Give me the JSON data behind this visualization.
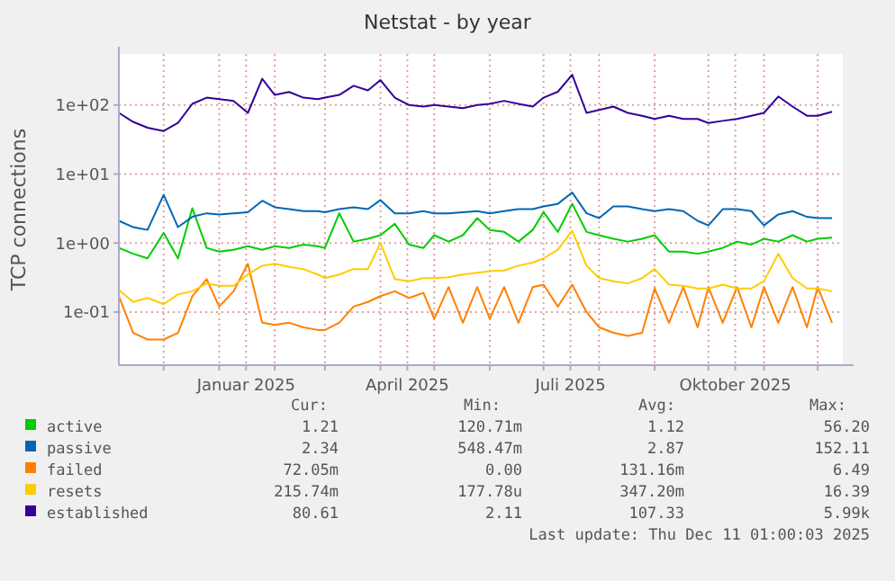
{
  "chart_data": {
    "type": "line",
    "title": "Netstat - by year",
    "ylabel": "TCP connections",
    "log": true,
    "grid": true,
    "legend": "bottom",
    "marker": "none",
    "line_style": "solid",
    "x": [
      "2024-11-06",
      "2024-11-14",
      "2024-11-22",
      "2024-12-01",
      "2024-12-09",
      "2024-12-17",
      "2024-12-25",
      "2025-01-01",
      "2025-01-09",
      "2025-01-17",
      "2025-01-25",
      "2025-02-01",
      "2025-02-09",
      "2025-02-17",
      "2025-02-25",
      "2025-03-01",
      "2025-03-09",
      "2025-03-17",
      "2025-03-25",
      "2025-04-01",
      "2025-04-09",
      "2025-04-17",
      "2025-04-25",
      "2025-05-01",
      "2025-05-09",
      "2025-05-17",
      "2025-05-25",
      "2025-06-01",
      "2025-06-09",
      "2025-06-17",
      "2025-06-25",
      "2025-07-01",
      "2025-07-09",
      "2025-07-17",
      "2025-07-25",
      "2025-08-01",
      "2025-08-09",
      "2025-08-17",
      "2025-08-25",
      "2025-09-01",
      "2025-09-09",
      "2025-09-17",
      "2025-09-25",
      "2025-10-01",
      "2025-10-09",
      "2025-10-17",
      "2025-10-25",
      "2025-11-01",
      "2025-11-09",
      "2025-11-17",
      "2025-11-25",
      "2025-12-01",
      "2025-12-09"
    ],
    "xlim": [
      "2024-11-06",
      "2025-12-15"
    ],
    "xticks": [
      {
        "value": "2024-12-01",
        "label": null
      },
      {
        "value": "2025-01-01",
        "label": null
      },
      {
        "value": "2025-01-16",
        "label": "Januar 2025"
      },
      {
        "value": "2025-02-01",
        "label": null
      },
      {
        "value": "2025-03-01",
        "label": null
      },
      {
        "value": "2025-04-01",
        "label": null
      },
      {
        "value": "2025-04-16",
        "label": "April 2025"
      },
      {
        "value": "2025-05-01",
        "label": null
      },
      {
        "value": "2025-06-01",
        "label": null
      },
      {
        "value": "2025-07-01",
        "label": null
      },
      {
        "value": "2025-07-16",
        "label": "Juli 2025"
      },
      {
        "value": "2025-08-01",
        "label": null
      },
      {
        "value": "2025-09-01",
        "label": null
      },
      {
        "value": "2025-10-01",
        "label": null
      },
      {
        "value": "2025-10-16",
        "label": "Oktober 2025"
      },
      {
        "value": "2025-11-01",
        "label": null
      },
      {
        "value": "2025-12-01",
        "label": null
      }
    ],
    "ylim": [
      0.017,
      550
    ],
    "yticks": [
      {
        "value": 0.1,
        "label": "1e-01"
      },
      {
        "value": 1,
        "label": "1e+00"
      },
      {
        "value": 10,
        "label": "1e+01"
      },
      {
        "value": 100,
        "label": "1e+02"
      }
    ],
    "series": [
      {
        "name": "active",
        "color": "#00cc00",
        "values": [
          0.85,
          0.7,
          0.6,
          1.4,
          0.6,
          3.2,
          0.85,
          0.75,
          0.8,
          0.9,
          0.8,
          0.9,
          0.85,
          0.95,
          0.9,
          0.85,
          2.7,
          1.05,
          1.15,
          1.3,
          1.9,
          0.95,
          0.85,
          1.3,
          1.05,
          1.3,
          2.3,
          1.55,
          1.45,
          1.05,
          1.55,
          2.8,
          1.45,
          3.7,
          1.45,
          1.3,
          1.15,
          1.05,
          1.15,
          1.3,
          0.75,
          0.75,
          0.7,
          0.75,
          0.85,
          1.05,
          0.95,
          1.15,
          1.05,
          1.3,
          1.05,
          1.15,
          1.2
        ]
      },
      {
        "name": "passive",
        "color": "#0066b3",
        "values": [
          2.1,
          1.7,
          1.55,
          5.0,
          1.7,
          2.4,
          2.7,
          2.6,
          2.7,
          2.8,
          4.1,
          3.3,
          3.1,
          2.9,
          2.9,
          2.8,
          3.1,
          3.3,
          3.1,
          4.2,
          2.7,
          2.7,
          2.9,
          2.7,
          2.7,
          2.8,
          2.9,
          2.7,
          2.9,
          3.1,
          3.1,
          3.4,
          3.7,
          5.4,
          2.7,
          2.3,
          3.4,
          3.4,
          3.1,
          2.9,
          3.1,
          2.9,
          2.1,
          1.8,
          3.1,
          3.1,
          2.9,
          1.8,
          2.6,
          2.9,
          2.4,
          2.3,
          2.3
        ]
      },
      {
        "name": "failed",
        "color": "#ff8000",
        "values": [
          0.17,
          0.05,
          0.04,
          0.04,
          0.05,
          0.17,
          0.3,
          0.12,
          0.2,
          0.5,
          0.07,
          0.065,
          0.07,
          0.06,
          0.055,
          0.055,
          0.07,
          0.12,
          0.14,
          0.17,
          0.2,
          0.16,
          0.19,
          0.08,
          0.23,
          0.07,
          0.23,
          0.08,
          0.23,
          0.07,
          0.23,
          0.25,
          0.12,
          0.25,
          0.1,
          0.06,
          0.05,
          0.045,
          0.05,
          0.22,
          0.07,
          0.23,
          0.06,
          0.23,
          0.07,
          0.23,
          0.06,
          0.23,
          0.07,
          0.23,
          0.06,
          0.23,
          0.07
        ]
      },
      {
        "name": "resets",
        "color": "#ffcc00",
        "values": [
          0.21,
          0.14,
          0.16,
          0.13,
          0.18,
          0.2,
          0.26,
          0.24,
          0.24,
          0.35,
          0.47,
          0.5,
          0.45,
          0.42,
          0.35,
          0.31,
          0.35,
          0.42,
          0.42,
          1.0,
          0.3,
          0.28,
          0.31,
          0.31,
          0.32,
          0.35,
          0.37,
          0.39,
          0.4,
          0.47,
          0.52,
          0.6,
          0.8,
          1.5,
          0.47,
          0.31,
          0.28,
          0.26,
          0.31,
          0.42,
          0.25,
          0.24,
          0.22,
          0.22,
          0.25,
          0.22,
          0.22,
          0.28,
          0.7,
          0.31,
          0.22,
          0.22,
          0.2
        ]
      },
      {
        "name": "established",
        "color": "#330099",
        "values": [
          77,
          57,
          47,
          42,
          55,
          104,
          128,
          122,
          115,
          77,
          240,
          140,
          155,
          128,
          122,
          128,
          140,
          190,
          163,
          230,
          128,
          100,
          95,
          100,
          95,
          90,
          100,
          104,
          115,
          104,
          95,
          128,
          156,
          275,
          77,
          85,
          95,
          77,
          70,
          63,
          70,
          63,
          63,
          55,
          59,
          63,
          70,
          77,
          133,
          95,
          70,
          70,
          80
        ]
      }
    ],
    "annotations": [
      "Cur:",
      "Min:",
      "Avg:",
      "Max:",
      "1.21",
      "120.71m",
      "1.12",
      "56.20",
      "2.34",
      "548.47m",
      "2.87",
      "152.11",
      "72.05m",
      "0.00",
      "131.16m",
      "6.49",
      "215.74m",
      "177.78u",
      "347.20m",
      "16.39",
      "80.61",
      "2.11",
      "107.33",
      "5.99k",
      "Last update: Thu Dec 11 01:00:03 2025"
    ]
  }
}
